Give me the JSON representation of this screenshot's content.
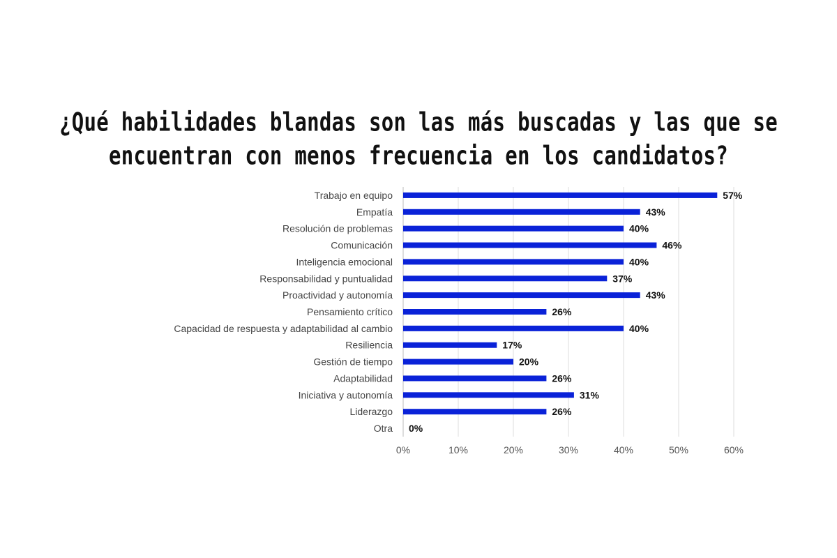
{
  "chart_data": {
    "type": "bar",
    "orientation": "horizontal",
    "title_lines": [
      "¿Qué habilidades blandas son las más buscadas y las que se",
      "encuentran con menos frecuencia en los candidatos?"
    ],
    "categories": [
      "Trabajo en equipo",
      "Empatía",
      "Resolución de problemas",
      "Comunicación",
      "Inteligencia emocional",
      "Responsabilidad y puntualidad",
      "Proactividad y autonomía",
      "Pensamiento crítico",
      "Capacidad de respuesta y adaptabilidad al cambio",
      "Resiliencia",
      "Gestión de tiempo",
      "Adaptabilidad",
      "Iniciativa y autonomía",
      "Liderazgo",
      "Otra"
    ],
    "values": [
      57,
      43,
      40,
      46,
      40,
      37,
      43,
      26,
      40,
      17,
      20,
      26,
      31,
      26,
      0
    ],
    "data_labels": [
      "57%",
      "43%",
      "40%",
      "46%",
      "40%",
      "37%",
      "43%",
      "26%",
      "40%",
      "17%",
      "20%",
      "26%",
      "31%",
      "26%",
      "0%"
    ],
    "xlim": [
      0,
      60
    ],
    "x_ticks": [
      "0%",
      "10%",
      "20%",
      "30%",
      "40%",
      "50%",
      "60%"
    ],
    "xlabel": "",
    "ylabel": "",
    "grid": "vertical",
    "legend": "none",
    "bar_color": "#0a22d8"
  }
}
